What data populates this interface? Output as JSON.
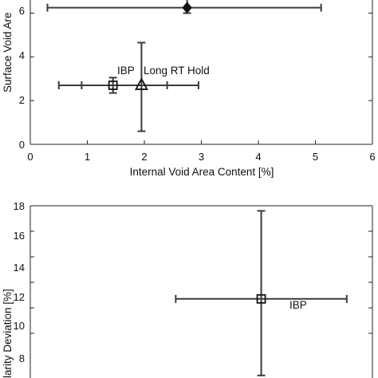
{
  "colors": {
    "axis": "#222222",
    "series": "#3a3a3a",
    "background": "#ffffff"
  },
  "chart_data": [
    {
      "type": "scatter",
      "xlabel": "Internal Void Area Content [%]",
      "ylabel": "Surface Void Are",
      "xlim": [
        0,
        6
      ],
      "ylim": [
        0,
        6.6
      ],
      "xticks": [
        "0",
        "1",
        "2",
        "3",
        "4",
        "5",
        "6"
      ],
      "yticks": [
        "0",
        "2",
        "4",
        "6"
      ],
      "grid": false,
      "points": [
        {
          "label": "IBP",
          "marker": "square",
          "x": 1.45,
          "y": 2.7,
          "xerr": [
            0.95,
            0.95
          ],
          "yerr": [
            0.35,
            0.35
          ]
        },
        {
          "label": "Long RT Hold",
          "marker": "triangle",
          "x": 1.95,
          "y": 2.7,
          "xerr": [
            1.05,
            1.0
          ],
          "yerr": [
            2.1,
            1.95
          ]
        },
        {
          "label": "",
          "marker": "diamond",
          "x": 2.75,
          "y": 6.25,
          "xerr": [
            2.45,
            2.35
          ],
          "yerr": [
            0.25,
            0.55
          ]
        }
      ]
    },
    {
      "type": "scatter",
      "xlabel": "",
      "ylabel": "larity Deviation [%]",
      "xlim": [
        0,
        6
      ],
      "ylim": [
        4.5,
        18
      ],
      "yticks": [
        "8",
        "10",
        "12",
        "14",
        "16",
        "18"
      ],
      "grid": false,
      "points": [
        {
          "label": "IBP",
          "marker": "square",
          "x": 4.05,
          "y": 10.7,
          "xerr": [
            1.5,
            1.5
          ],
          "yerr": [
            6.0,
            6.9
          ]
        }
      ]
    }
  ]
}
